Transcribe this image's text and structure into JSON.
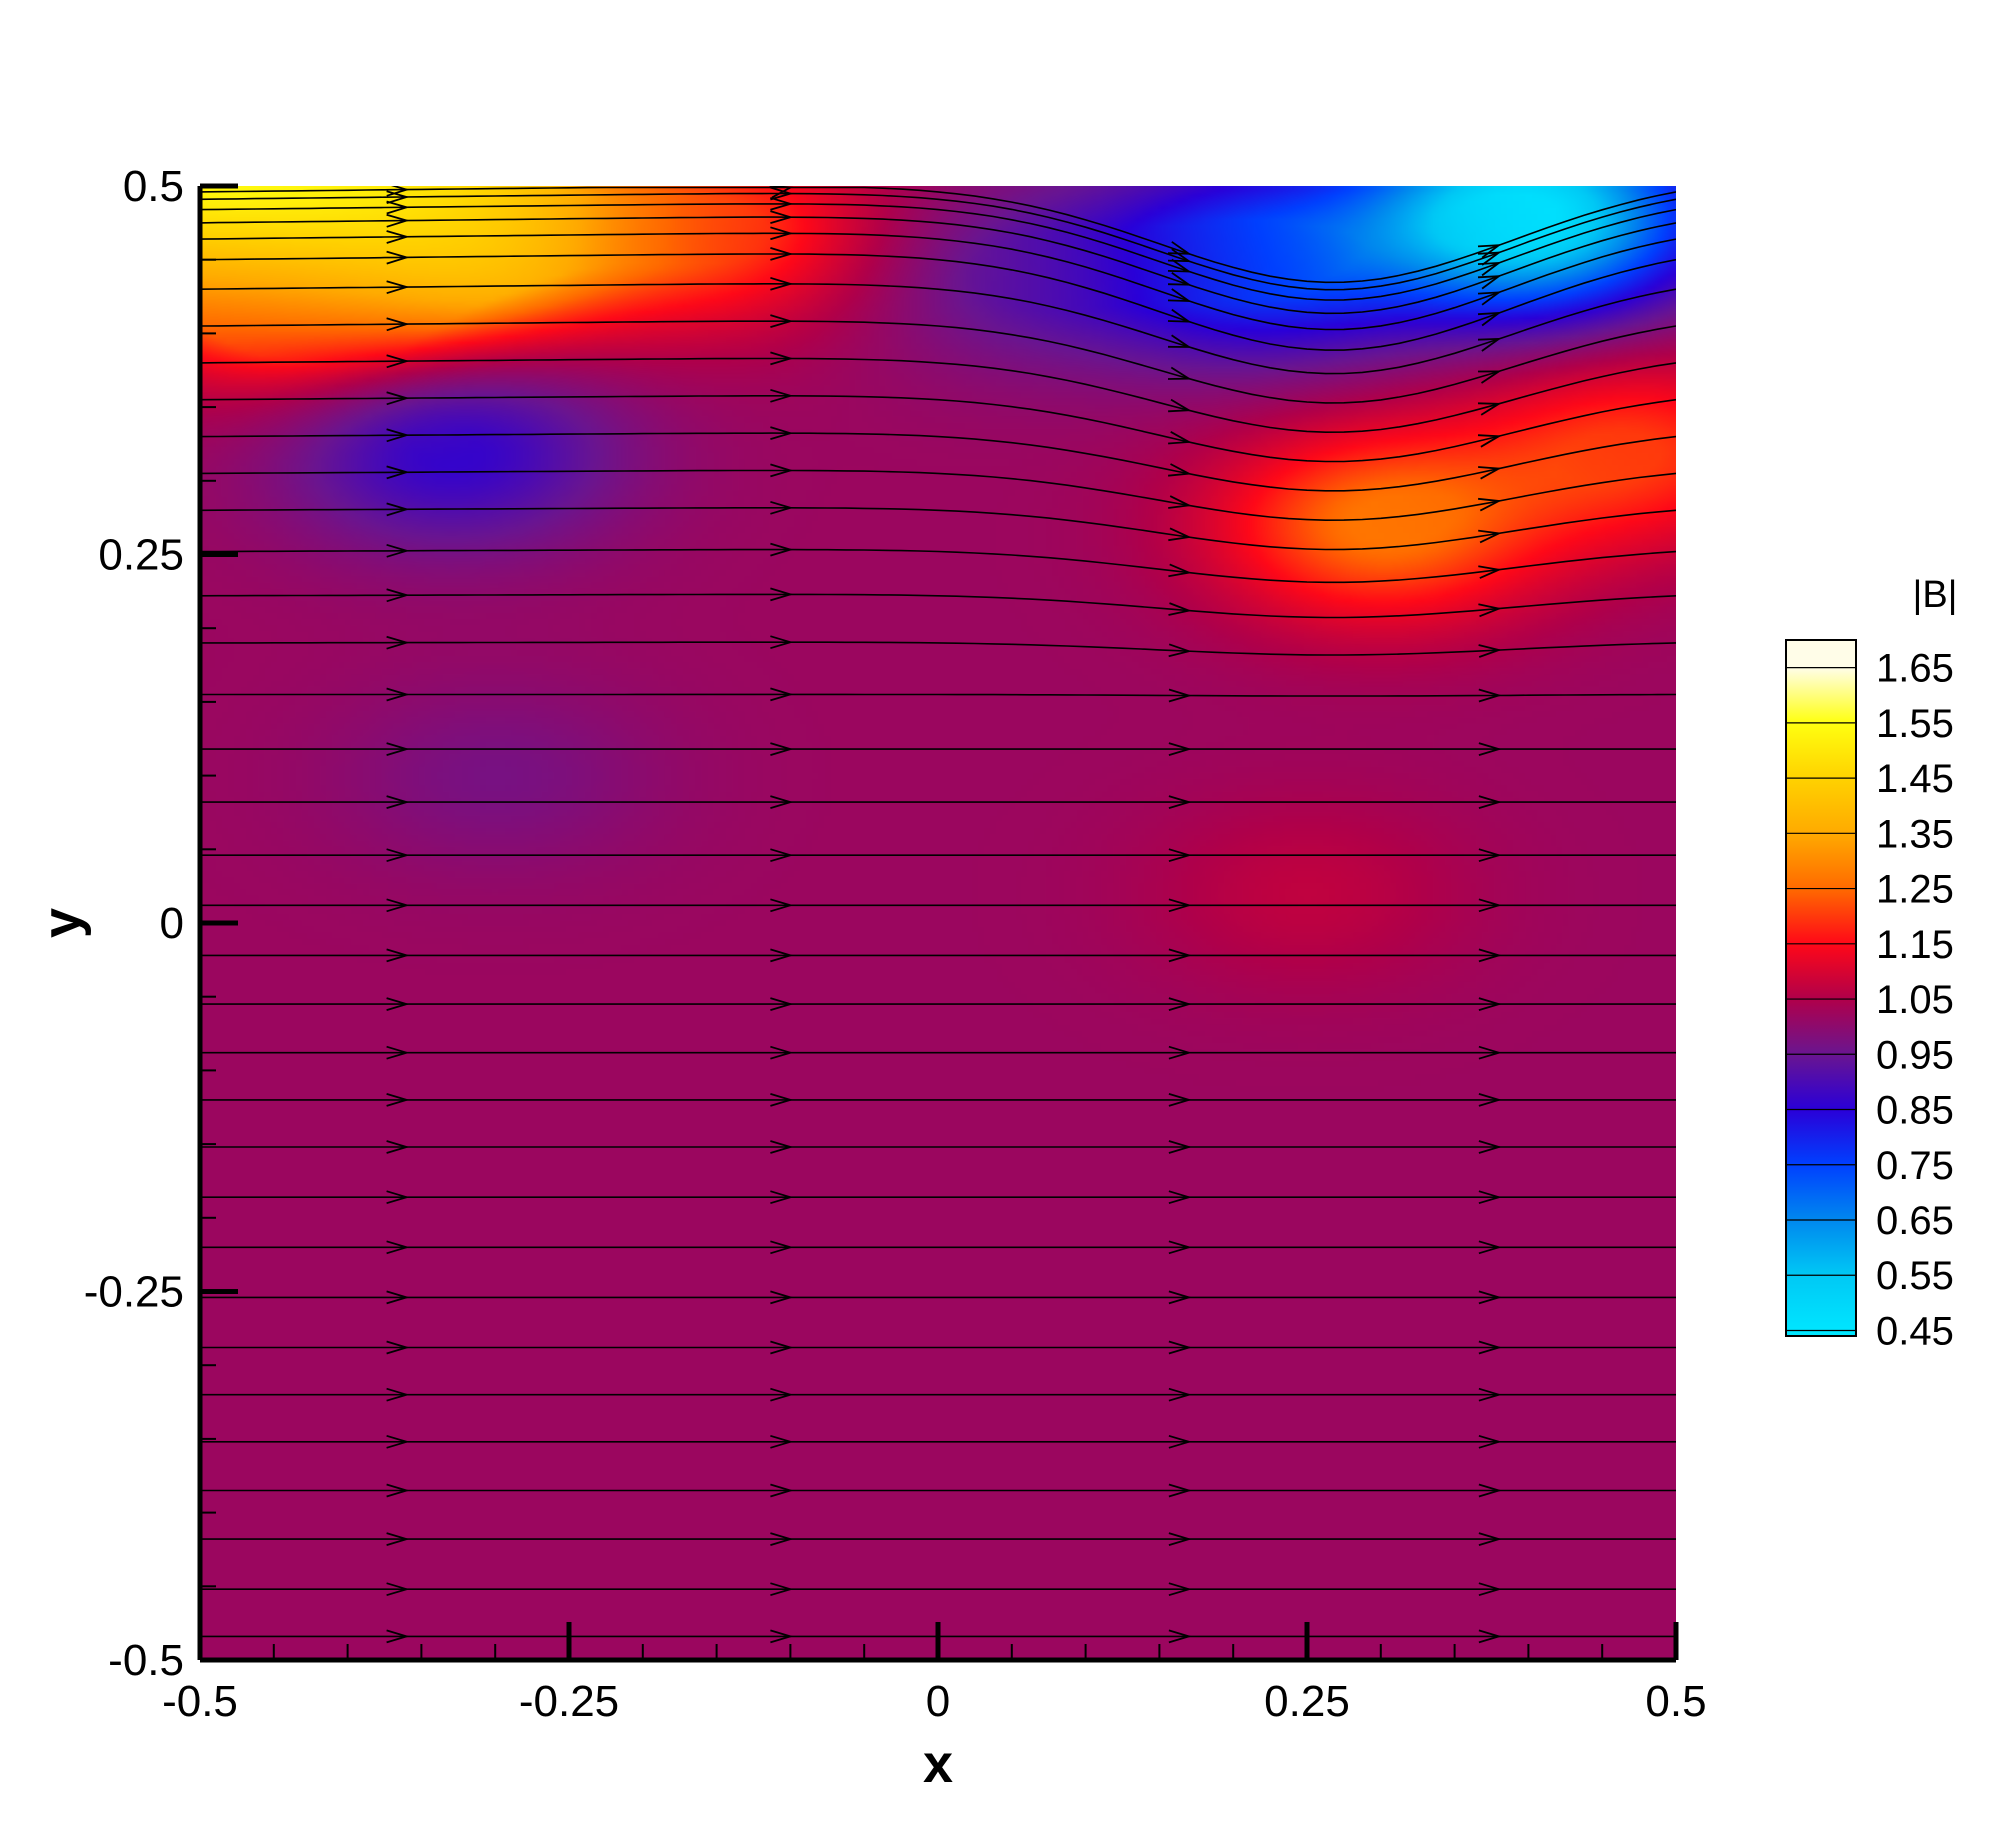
{
  "chart_data": {
    "type": "heatmap",
    "title": "",
    "xlabel": "x",
    "ylabel": "y",
    "xlim": [
      -0.5,
      0.5
    ],
    "ylim": [
      -0.5,
      0.5
    ],
    "x_ticks": [
      {
        "value": -0.5,
        "label": "-0.5"
      },
      {
        "value": -0.25,
        "label": "-0.25"
      },
      {
        "value": 0,
        "label": "0"
      },
      {
        "value": 0.25,
        "label": "0.25"
      },
      {
        "value": 0.5,
        "label": "0.5"
      }
    ],
    "y_ticks": [
      {
        "value": 0.5,
        "label": "0.5"
      },
      {
        "value": 0.25,
        "label": "0.25"
      },
      {
        "value": 0,
        "label": "0"
      },
      {
        "value": -0.25,
        "label": "-0.25"
      },
      {
        "value": -0.5,
        "label": "-0.5"
      }
    ],
    "colorbar": {
      "title": "|B|",
      "placement": "right",
      "range": [
        0.44,
        1.7
      ],
      "levels": [
        1.65,
        1.55,
        1.45,
        1.35,
        1.25,
        1.15,
        1.05,
        0.95,
        0.85,
        0.75,
        0.65,
        0.55,
        0.45
      ],
      "labels": [
        "1.65",
        "1.55",
        "1.45",
        "1.35",
        "1.25",
        "1.15",
        "1.05",
        "0.95",
        "0.85",
        "0.75",
        "0.65",
        "0.55",
        "0.45"
      ],
      "colormap": [
        {
          "value": 0.45,
          "color": "#00e5ff"
        },
        {
          "value": 0.55,
          "color": "#00c8f5"
        },
        {
          "value": 0.65,
          "color": "#0088ee"
        },
        {
          "value": 0.75,
          "color": "#0040ff"
        },
        {
          "value": 0.85,
          "color": "#2a00d8"
        },
        {
          "value": 0.95,
          "color": "#6a1590"
        },
        {
          "value": 1.05,
          "color": "#b0004a"
        },
        {
          "value": 1.15,
          "color": "#ff0818"
        },
        {
          "value": 1.25,
          "color": "#ff6a00"
        },
        {
          "value": 1.35,
          "color": "#ffaa00"
        },
        {
          "value": 1.45,
          "color": "#ffd200"
        },
        {
          "value": 1.55,
          "color": "#ffff10"
        },
        {
          "value": 1.65,
          "color": "#fffde8"
        }
      ]
    },
    "field_features": [
      {
        "x": -0.44,
        "y": 0.48,
        "value": 1.65
      },
      {
        "x": -0.32,
        "y": 0.47,
        "value": 1.45
      },
      {
        "x": -0.15,
        "y": 0.47,
        "value": 1.2
      },
      {
        "x": -0.45,
        "y": 0.42,
        "value": 1.15
      },
      {
        "x": -0.33,
        "y": 0.32,
        "value": 0.86
      },
      {
        "x": -0.3,
        "y": 0.1,
        "value": 0.97
      },
      {
        "x": 0.06,
        "y": 0.44,
        "value": 0.93
      },
      {
        "x": 0.22,
        "y": 0.45,
        "value": 0.75
      },
      {
        "x": 0.4,
        "y": 0.48,
        "value": 0.46
      },
      {
        "x": 0.3,
        "y": 0.27,
        "value": 1.27
      },
      {
        "x": 0.47,
        "y": 0.32,
        "value": 1.2
      },
      {
        "x": 0.25,
        "y": 0.02,
        "value": 1.07
      }
    ],
    "background_value": 1.02,
    "streamlines": {
      "direction": "+x",
      "arrow_x": [
        -0.36,
        -0.1,
        0.17,
        0.38
      ],
      "start_y": [
        0.496,
        0.491,
        0.484,
        0.475,
        0.464,
        0.45,
        0.43,
        0.405,
        0.38,
        0.355,
        0.33,
        0.305,
        0.28,
        0.252,
        0.222,
        0.19,
        0.155,
        0.118,
        0.082,
        0.046,
        0.012,
        -0.022,
        -0.055,
        -0.088,
        -0.12,
        -0.152,
        -0.186,
        -0.22,
        -0.254,
        -0.288,
        -0.32,
        -0.352,
        -0.385,
        -0.418,
        -0.452,
        -0.484
      ]
    }
  }
}
